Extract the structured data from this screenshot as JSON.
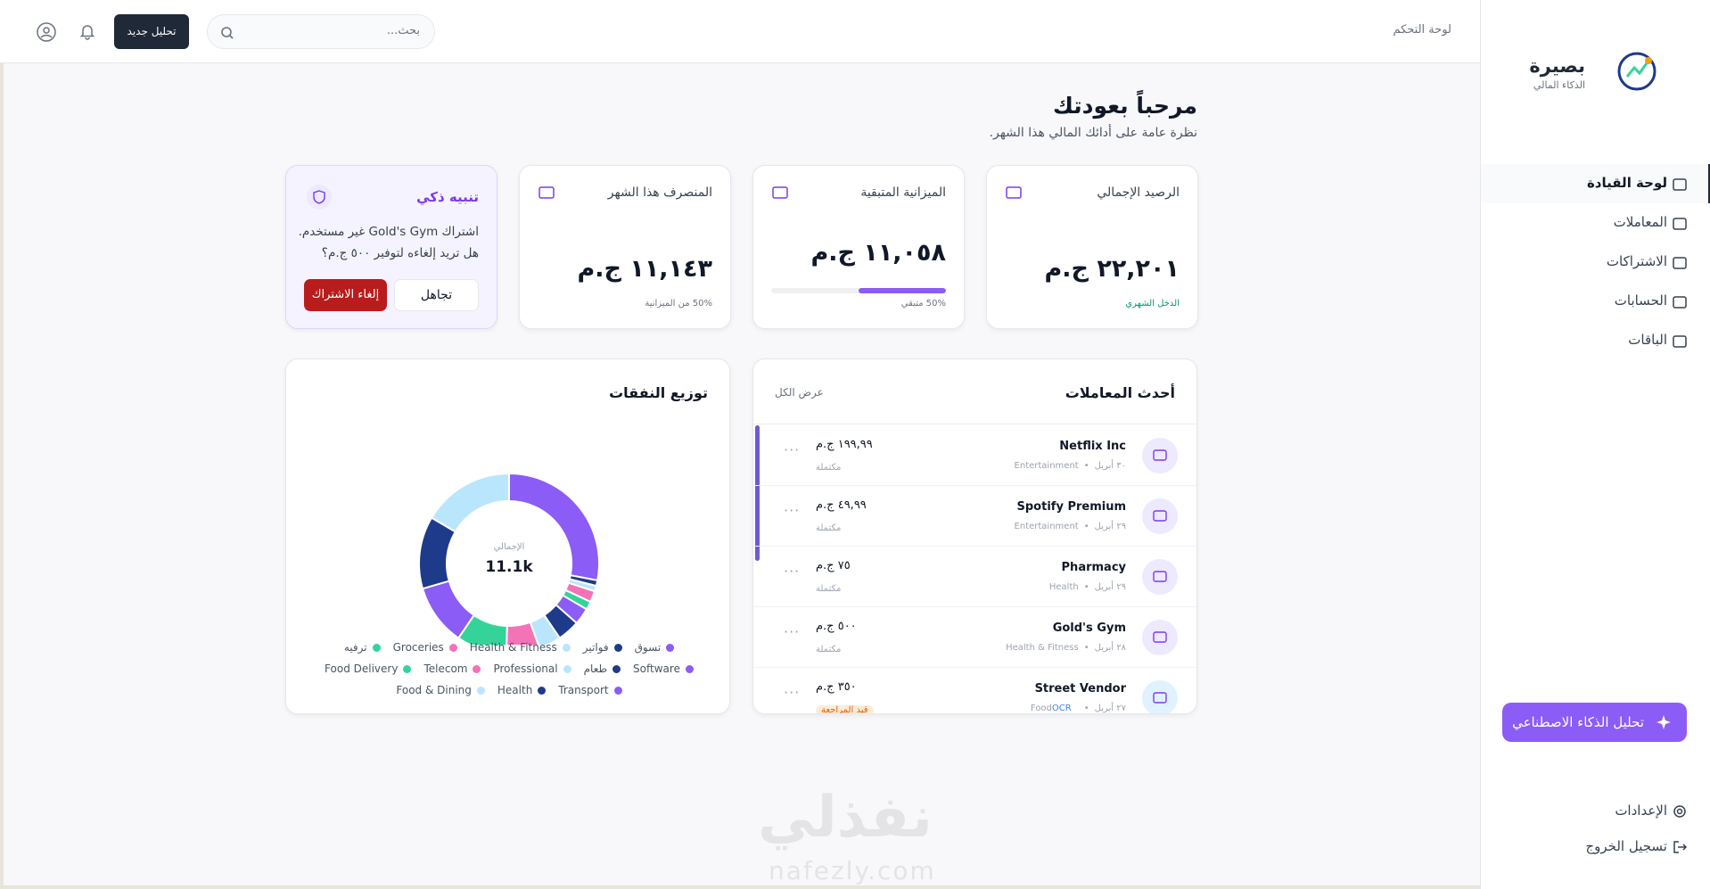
{
  "header": {
    "breadcrumb": "لوحة التحكم",
    "search_placeholder": "بحث...",
    "new_analysis": "تحليل جديد"
  },
  "sidebar": {
    "brand": "بصيرة",
    "tagline": "الذكاء المالي",
    "nav": [
      "لوحة القيادة",
      "المعاملات",
      "الاشتراكات",
      "الحسابات",
      "الباقات"
    ],
    "ai_button": "تحليل الذكاء الاصطناعي",
    "settings": "الإعدادات",
    "logout": "تسجيل الخروج"
  },
  "welcome": {
    "title": "مرحباً بعودتك",
    "subtitle": "نظرة عامة على أدائك المالي هذا الشهر."
  },
  "cards": [
    {
      "label": "الرصيد الإجمالي",
      "value": "٢٢,٢٠١ ج.م",
      "note": "الدخل الشهري"
    },
    {
      "label": "الميزانية المتبقية",
      "value": "١١,٠٥٨ ج.م",
      "note": "50% متبقي",
      "progress": 50
    },
    {
      "label": "المنصرف هذا الشهر",
      "value": "١١,١٤٣ ج.م",
      "note": "50% من الميزانية"
    }
  ],
  "alert": {
    "title": "تنبيه ذكي",
    "line1": "اشتراك Gold's Gym غير مستخدم.",
    "line2": "هل تريد إلغاءه لتوفير ٥٠٠ ج.م؟",
    "dismiss": "تجاهل",
    "cancel": "إلغاء الاشتراك"
  },
  "transactions": {
    "title": "أحدث المعاملات",
    "view_all": "عرض الكل",
    "items": [
      {
        "name": "Netflix Inc",
        "date": "٣٠ أبريل",
        "category": "Entertainment",
        "amount": "١٩٩,٩٩ ج.م",
        "status": "مكتملة"
      },
      {
        "name": "Spotify Premium",
        "date": "٢٩ أبريل",
        "category": "Entertainment",
        "amount": "٤٩,٩٩ ج.م",
        "status": "مكتملة"
      },
      {
        "name": "Pharmacy",
        "date": "٢٩ أبريل",
        "category": "Health",
        "amount": "٧٥ ج.م",
        "status": "مكتملة"
      },
      {
        "name": "Gold's Gym",
        "date": "٢٨ أبريل",
        "category": "Health & Fitness",
        "amount": "٥٠٠ ج.م",
        "status": "مكتملة"
      },
      {
        "name": "Street Vendor",
        "date": "٢٧ أبريل",
        "category": "Food",
        "amount": "٣٥٠ ج.م",
        "status": "قيد المراجعة",
        "badge": "OCR"
      }
    ]
  },
  "chart_data": {
    "type": "donut",
    "title": "توزيع النفقات",
    "center_label": "الإجمالي",
    "center_value": "11.1k",
    "categories": [
      "تسوق",
      "فواتير",
      "Health & Fitness",
      "Groceries",
      "ترفيه",
      "Software",
      "طعام",
      "Professional",
      "Telecom",
      "Food Delivery",
      "Transport",
      "Health",
      "Food & Dining"
    ],
    "values": [
      28,
      1,
      1,
      2,
      1.5,
      3,
      4,
      4,
      6,
      9,
      11,
      13,
      16.5
    ],
    "colors": [
      "#8b5cf6",
      "#1e3a8a",
      "#bae6fd",
      "#f472b6",
      "#34d399",
      "#8b5cf6",
      "#1e3a8a",
      "#bae6fd",
      "#f472b6",
      "#34d399",
      "#8b5cf6",
      "#1e3a8a",
      "#bae6fd"
    ]
  },
  "watermark": {
    "arabic": "نفذلي",
    "latin": "nafezly.com"
  }
}
